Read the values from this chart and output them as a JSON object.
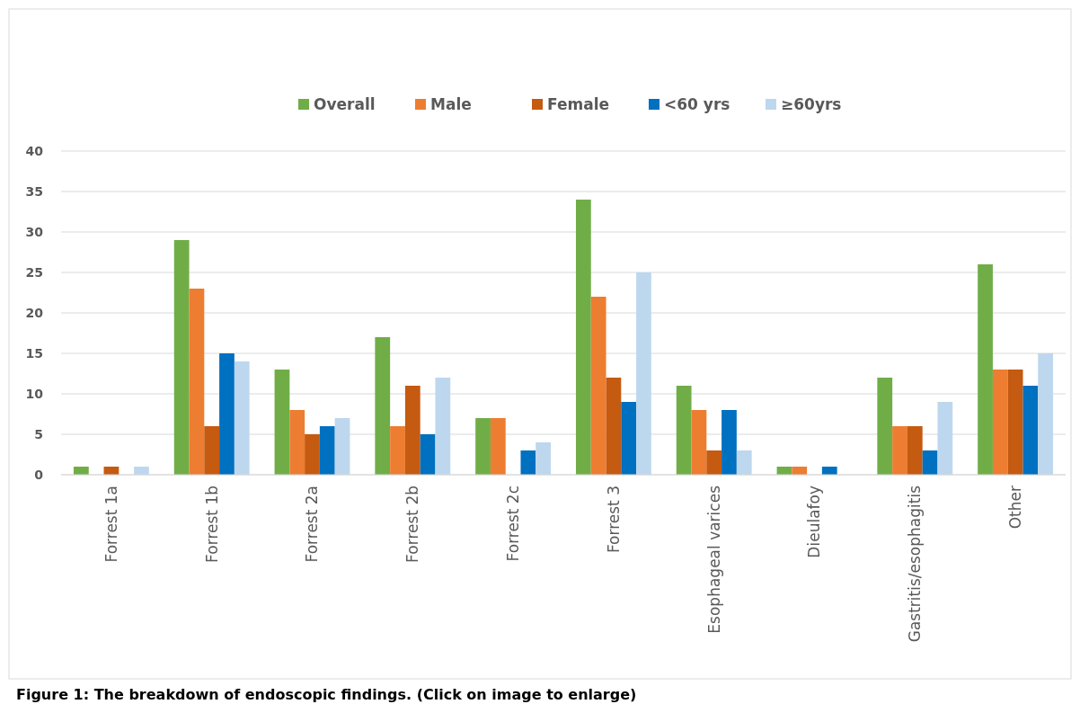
{
  "chart_data": {
    "type": "bar",
    "categories": [
      "Forrest 1a",
      "Forrest 1b",
      "Forrest 2a",
      "Forrest 2b",
      "Forrest 2c",
      "Forrest 3",
      "Esophageal varices",
      "Dieulafoy",
      "Gastritis/esophagitis",
      "Other"
    ],
    "series": [
      {
        "name": "Overall",
        "color": "#70ad47",
        "values": [
          1,
          29,
          13,
          17,
          7,
          34,
          11,
          1,
          12,
          26
        ]
      },
      {
        "name": "Male",
        "color": "#ed7d31",
        "values": [
          0,
          23,
          8,
          6,
          7,
          22,
          8,
          1,
          6,
          13
        ]
      },
      {
        "name": "Female",
        "color": "#c55a11",
        "values": [
          1,
          6,
          5,
          11,
          0,
          12,
          3,
          0,
          6,
          13
        ]
      },
      {
        "name": "<60 yrs",
        "color": "#0070c0",
        "values": [
          0,
          15,
          6,
          5,
          3,
          9,
          8,
          1,
          3,
          11
        ]
      },
      {
        "name": "≥60yrs",
        "color": "#bdd7ee",
        "values": [
          1,
          14,
          7,
          12,
          4,
          25,
          3,
          0,
          9,
          15
        ]
      }
    ],
    "ylim": [
      0,
      40
    ],
    "yticks": [
      0,
      5,
      10,
      15,
      20,
      25,
      30,
      35,
      40
    ],
    "grid": "y",
    "legend": "top",
    "annotations": [
      "Figure 1: The breakdown of endoscopic findings. (Click on image to enlarge)"
    ]
  }
}
